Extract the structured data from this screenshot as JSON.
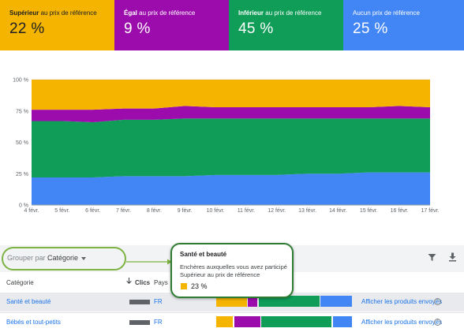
{
  "kpis": [
    {
      "bold": "Supérieur",
      "rest": " au prix de référence",
      "value": "22 %",
      "color": "#f4b400"
    },
    {
      "bold": "Égal",
      "rest": " au prix de référence",
      "value": "9 %",
      "color": "#9c0cad"
    },
    {
      "bold": "Inférieur",
      "rest": " au prix de référence",
      "value": "45 %",
      "color": "#0f9d58"
    },
    {
      "bold": "",
      "rest": "Aucun prix de référence",
      "value": "25 %",
      "color": "#4285f4"
    }
  ],
  "chart_data": {
    "type": "area",
    "stacked": true,
    "x": [
      "4 févr.",
      "5 févr.",
      "6 févr.",
      "7 févr.",
      "8 févr.",
      "9 févr.",
      "10 févr.",
      "11 févr.",
      "12 févr.",
      "13 févr.",
      "14 févr.",
      "15 févr.",
      "16 févr.",
      "17 févr."
    ],
    "y_tick_labels": [
      "0 %",
      "25 %",
      "50 %",
      "75 %",
      "100 %"
    ],
    "ylim": [
      0,
      100
    ],
    "series": [
      {
        "color": "#4285f4",
        "values": [
          22,
          22,
          22,
          23,
          23,
          23,
          24,
          24,
          24,
          25,
          25,
          26,
          26,
          26
        ]
      },
      {
        "color": "#0f9d58",
        "values": [
          45,
          45,
          44,
          45,
          45,
          46,
          45,
          45,
          45,
          44,
          44,
          43,
          43,
          43
        ]
      },
      {
        "color": "#9c0cad",
        "values": [
          9,
          9,
          10,
          9,
          9,
          10,
          9,
          9,
          9,
          9,
          9,
          9,
          10,
          9
        ]
      },
      {
        "color": "#f4b400",
        "values": [
          24,
          24,
          24,
          23,
          23,
          21,
          22,
          22,
          22,
          22,
          22,
          22,
          21,
          22
        ]
      }
    ]
  },
  "toolbar": {
    "group_label": "Grouper par :",
    "group_value": "Catégorie",
    "filter_icon": "filter-icon",
    "download_icon": "download-icon"
  },
  "table": {
    "headers": {
      "category": "Catégorie",
      "clicks": "Clics",
      "country": "Pays"
    },
    "rows": [
      {
        "category": "Santé et beauté",
        "country": "FR",
        "link": "Afficher les produits envoyés",
        "shares": [
          {
            "value": 23,
            "color": "#f4b400"
          },
          {
            "value": 8,
            "color": "#9c0cad"
          },
          {
            "value": 45,
            "color": "#0f9d58"
          },
          {
            "value": 24,
            "color": "#4285f4"
          }
        ]
      },
      {
        "category": "Bébés et tout-petits",
        "country": "FR",
        "link": "Afficher les produits envoyés",
        "shares": [
          {
            "value": 13,
            "color": "#f4b400"
          },
          {
            "value": 20,
            "color": "#9c0cad"
          },
          {
            "value": 52,
            "color": "#0f9d58"
          },
          {
            "value": 15,
            "color": "#4285f4"
          }
        ]
      }
    ]
  },
  "tooltip": {
    "title": "Santé et beauté",
    "line1": "Enchères auxquelles vous avez participé",
    "line2": "Supérieur au prix de référence",
    "value": "23 %",
    "color": "#f4b400"
  }
}
